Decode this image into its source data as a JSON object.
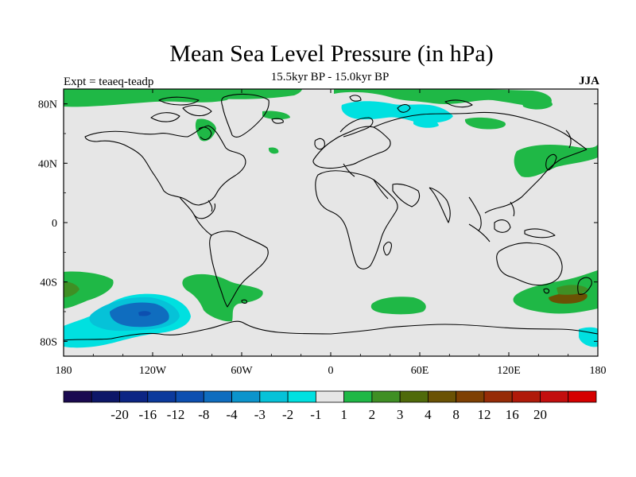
{
  "title": "Mean Sea Level Pressure (in hPa)",
  "subtitle": "15.5kyr BP - 15.0kyr BP",
  "left_label": "Expt = teaeq-teadp",
  "right_label": "JJA",
  "axes": {
    "lat_ticks": [
      {
        "value": 80,
        "label": "80N"
      },
      {
        "value": 40,
        "label": "40N"
      },
      {
        "value": 0,
        "label": "0"
      },
      {
        "value": -40,
        "label": "40S"
      },
      {
        "value": -80,
        "label": "80S"
      }
    ],
    "lon_ticks": [
      {
        "value": -180,
        "label": "180"
      },
      {
        "value": -120,
        "label": "120W"
      },
      {
        "value": -60,
        "label": "60W"
      },
      {
        "value": 0,
        "label": "0"
      },
      {
        "value": 60,
        "label": "60E"
      },
      {
        "value": 120,
        "label": "120E"
      },
      {
        "value": 180,
        "label": "180"
      }
    ],
    "lon_range": [
      -180,
      180
    ],
    "lat_range": [
      -90,
      90
    ]
  },
  "colorbar": {
    "colors": [
      "#1a0a50",
      "#0d1768",
      "#0c2584",
      "#0c3a9c",
      "#0d4fb0",
      "#0f6dbf",
      "#0c94cc",
      "#06c2d8",
      "#00e0e0",
      "#e6e6e6",
      "#1fb846",
      "#3f8f24",
      "#4f6a0a",
      "#6a5204",
      "#7e4003",
      "#962c07",
      "#b01a0a",
      "#c30e0e",
      "#d60000"
    ],
    "labels": [
      "-20",
      "-16",
      "-12",
      "-8",
      "-4",
      "-3",
      "-2",
      "-1",
      "1",
      "2",
      "3",
      "4",
      "8",
      "12",
      "16",
      "20"
    ]
  },
  "map_colors": {
    "background": "#e6e6e6",
    "green": "#1fb846",
    "dark_green": "#3f8f24",
    "olive": "#6a5204",
    "cyan": "#00e0e0",
    "light_blue": "#06c2d8",
    "blue": "#0f6dbf",
    "dark_blue": "#0d4fb0",
    "coast": "#000000"
  },
  "anomaly_regions": [
    {
      "name": "arctic-canada",
      "sign": "positive",
      "level": "1 to 2",
      "center": [
        -120,
        82
      ]
    },
    {
      "name": "north-atlantic-arctic",
      "sign": "positive",
      "level": "1 to 2",
      "center": [
        -45,
        82
      ]
    },
    {
      "name": "northern-siberia",
      "sign": "positive",
      "level": "1 to 2",
      "center": [
        105,
        78
      ]
    },
    {
      "name": "kara-barents",
      "sign": "negative",
      "level": "-1 to -2",
      "center": [
        45,
        79
      ]
    },
    {
      "name": "northwest-pacific",
      "sign": "positive",
      "level": "1 to 2",
      "center": [
        135,
        40
      ]
    },
    {
      "name": "southeast-pacific",
      "sign": "negative",
      "level": "-4 to -1",
      "center": [
        -122,
        -60
      ]
    },
    {
      "name": "southwest-pacific",
      "sign": "positive",
      "level": "1 to 3",
      "center": [
        -175,
        -42
      ]
    },
    {
      "name": "south-america",
      "sign": "positive",
      "level": "1 to 2",
      "center": [
        -65,
        -42
      ]
    },
    {
      "name": "south-indian",
      "sign": "positive",
      "level": "1 to 2",
      "center": [
        40,
        -52
      ]
    },
    {
      "name": "tasman-nz",
      "sign": "positive",
      "level": "1 to 3",
      "center": [
        160,
        -47
      ]
    }
  ]
}
